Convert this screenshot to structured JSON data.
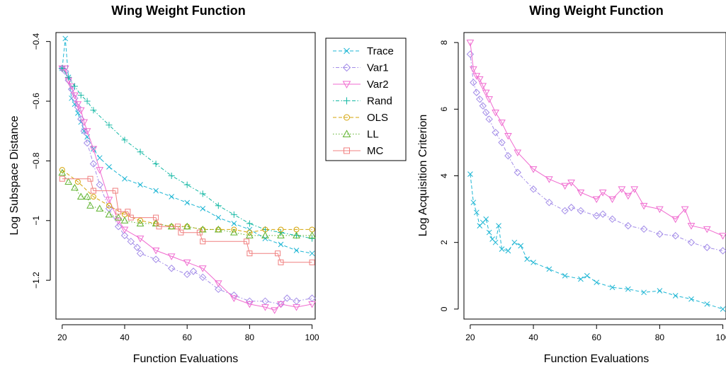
{
  "chart_data": [
    {
      "type": "line",
      "title": "Wing Weight Function",
      "xlabel": "Function Evaluations",
      "ylabel": "Log Subspace Distance",
      "xlim": [
        18,
        101
      ],
      "ylim": [
        -1.33,
        -0.37
      ],
      "xticks": [
        20,
        40,
        60,
        80,
        100
      ],
      "yticks": [
        -1.2,
        -1.0,
        -0.8,
        -0.6,
        -0.4
      ],
      "legend": "top-right, outside plot",
      "series": [
        {
          "name": "Trace",
          "color": "#1eb6d4",
          "marker": "x",
          "line": "dashed",
          "x": [
            20,
            21,
            22,
            23,
            24,
            25,
            26,
            27,
            28,
            30,
            32,
            35,
            40,
            45,
            50,
            55,
            60,
            65,
            70,
            75,
            80,
            85,
            90,
            95,
            100
          ],
          "y": [
            -0.49,
            -0.39,
            -0.52,
            -0.59,
            -0.61,
            -0.64,
            -0.67,
            -0.7,
            -0.72,
            -0.76,
            -0.79,
            -0.82,
            -0.86,
            -0.88,
            -0.9,
            -0.92,
            -0.94,
            -0.96,
            -0.99,
            -1.01,
            -1.03,
            -1.06,
            -1.08,
            -1.1,
            -1.11
          ]
        },
        {
          "name": "Var1",
          "color": "#a38ce8",
          "marker": "diamond",
          "line": "dotdash",
          "x": [
            20,
            21,
            22,
            23,
            24,
            25,
            26,
            27,
            28,
            30,
            32,
            35,
            38,
            40,
            42,
            44,
            45,
            50,
            55,
            60,
            62,
            65,
            70,
            75,
            80,
            85,
            90,
            92,
            95,
            100
          ],
          "y": [
            -0.49,
            -0.5,
            -0.53,
            -0.56,
            -0.59,
            -0.62,
            -0.66,
            -0.7,
            -0.74,
            -0.81,
            -0.88,
            -0.96,
            -1.02,
            -1.05,
            -1.07,
            -1.09,
            -1.11,
            -1.13,
            -1.16,
            -1.18,
            -1.17,
            -1.19,
            -1.23,
            -1.25,
            -1.27,
            -1.27,
            -1.28,
            -1.26,
            -1.27,
            -1.26
          ]
        },
        {
          "name": "Var2",
          "color": "#f06bd0",
          "marker": "triangle-down",
          "line": "solid",
          "x": [
            20,
            21,
            22,
            23,
            24,
            25,
            26,
            27,
            28,
            30,
            32,
            35,
            38,
            40,
            45,
            50,
            55,
            60,
            65,
            70,
            75,
            80,
            85,
            88,
            90,
            95,
            100
          ],
          "y": [
            -0.49,
            -0.49,
            -0.53,
            -0.55,
            -0.58,
            -0.61,
            -0.63,
            -0.67,
            -0.7,
            -0.76,
            -0.83,
            -0.93,
            -1.0,
            -1.03,
            -1.06,
            -1.1,
            -1.12,
            -1.14,
            -1.16,
            -1.21,
            -1.26,
            -1.28,
            -1.29,
            -1.3,
            -1.28,
            -1.29,
            -1.28
          ]
        },
        {
          "name": "Rand",
          "color": "#14b8a4",
          "marker": "plus",
          "line": "dotdash",
          "x": [
            20,
            22,
            24,
            26,
            28,
            30,
            35,
            40,
            45,
            50,
            55,
            60,
            65,
            70,
            75,
            80,
            85,
            90,
            95,
            100
          ],
          "y": [
            -0.49,
            -0.52,
            -0.55,
            -0.58,
            -0.6,
            -0.63,
            -0.68,
            -0.73,
            -0.77,
            -0.81,
            -0.85,
            -0.88,
            -0.91,
            -0.95,
            -0.98,
            -1.01,
            -1.03,
            -1.04,
            -1.05,
            -1.06
          ]
        },
        {
          "name": "OLS",
          "color": "#d4a50a",
          "marker": "circle",
          "line": "dashed",
          "x": [
            20,
            25,
            30,
            35,
            40,
            45,
            50,
            55,
            60,
            65,
            70,
            75,
            80,
            85,
            90,
            95,
            100
          ],
          "y": [
            -0.83,
            -0.87,
            -0.92,
            -0.95,
            -0.98,
            -1.0,
            -1.01,
            -1.02,
            -1.02,
            -1.03,
            -1.03,
            -1.03,
            -1.04,
            -1.03,
            -1.03,
            -1.03,
            -1.03
          ]
        },
        {
          "name": "LL",
          "color": "#5fb32e",
          "marker": "triangle-up",
          "line": "dotted",
          "x": [
            20,
            22,
            24,
            26,
            28,
            29,
            32,
            35,
            38,
            40,
            45,
            50,
            55,
            60,
            65,
            70,
            75,
            80,
            85,
            90,
            95,
            100
          ],
          "y": [
            -0.84,
            -0.87,
            -0.89,
            -0.92,
            -0.92,
            -0.95,
            -0.96,
            -0.98,
            -0.99,
            -1.0,
            -1.01,
            -1.01,
            -1.02,
            -1.02,
            -1.03,
            -1.03,
            -1.04,
            -1.05,
            -1.05,
            -1.05,
            -1.05,
            -1.05
          ]
        },
        {
          "name": "MC",
          "color": "#f08080",
          "marker": "square",
          "line": "solid",
          "x": [
            20,
            29,
            30,
            37,
            38,
            41,
            42,
            50,
            51,
            57,
            58,
            64,
            65,
            79,
            80,
            89,
            90,
            100
          ],
          "y": [
            -0.86,
            -0.86,
            -0.9,
            -0.9,
            -0.97,
            -0.97,
            -0.99,
            -0.99,
            -1.02,
            -1.02,
            -1.04,
            -1.04,
            -1.07,
            -1.07,
            -1.11,
            -1.11,
            -1.14,
            -1.14
          ]
        }
      ]
    },
    {
      "type": "line",
      "title": "Wing Weight Function",
      "xlabel": "Function Evaluations",
      "ylabel": "Log Acquisition Criterion",
      "xlim": [
        18,
        101
      ],
      "ylim": [
        -0.3,
        8.3
      ],
      "xticks": [
        20,
        40,
        60,
        80,
        100
      ],
      "yticks": [
        0,
        2,
        4,
        6,
        8
      ],
      "series": [
        {
          "name": "Trace",
          "color": "#1eb6d4",
          "marker": "x",
          "line": "dashed",
          "x": [
            20,
            21,
            22,
            23,
            24,
            25,
            26,
            27,
            28,
            29,
            30,
            32,
            34,
            36,
            38,
            40,
            45,
            50,
            55,
            57,
            60,
            65,
            70,
            75,
            80,
            85,
            90,
            95,
            100
          ],
          "y": [
            4.05,
            3.2,
            2.9,
            2.5,
            2.6,
            2.7,
            2.3,
            2.1,
            2.0,
            2.5,
            1.8,
            1.75,
            2.0,
            1.9,
            1.5,
            1.4,
            1.2,
            1.0,
            0.9,
            1.0,
            0.8,
            0.65,
            0.6,
            0.5,
            0.55,
            0.4,
            0.3,
            0.15,
            0.0
          ]
        },
        {
          "name": "Var1",
          "color": "#a38ce8",
          "marker": "diamond",
          "line": "dotdash",
          "x": [
            20,
            21,
            22,
            23,
            24,
            25,
            26,
            28,
            30,
            32,
            35,
            40,
            45,
            50,
            52,
            55,
            60,
            62,
            65,
            70,
            75,
            80,
            85,
            90,
            95,
            100
          ],
          "y": [
            7.65,
            6.8,
            6.5,
            6.3,
            6.1,
            5.9,
            5.7,
            5.3,
            5.0,
            4.6,
            4.1,
            3.6,
            3.2,
            2.95,
            3.05,
            2.95,
            2.8,
            2.85,
            2.7,
            2.5,
            2.4,
            2.25,
            2.2,
            2.0,
            1.85,
            1.75
          ]
        },
        {
          "name": "Var2",
          "color": "#f06bd0",
          "marker": "triangle-down",
          "line": "solid",
          "x": [
            20,
            21,
            22,
            23,
            24,
            25,
            26,
            28,
            30,
            32,
            35,
            40,
            45,
            50,
            52,
            55,
            60,
            62,
            65,
            68,
            70,
            72,
            75,
            80,
            85,
            88,
            90,
            95,
            100
          ],
          "y": [
            8.0,
            7.2,
            7.0,
            6.9,
            6.7,
            6.5,
            6.3,
            5.9,
            5.6,
            5.2,
            4.7,
            4.2,
            3.9,
            3.7,
            3.8,
            3.5,
            3.3,
            3.5,
            3.3,
            3.6,
            3.4,
            3.6,
            3.1,
            3.0,
            2.7,
            3.0,
            2.5,
            2.4,
            2.2
          ]
        }
      ]
    }
  ]
}
